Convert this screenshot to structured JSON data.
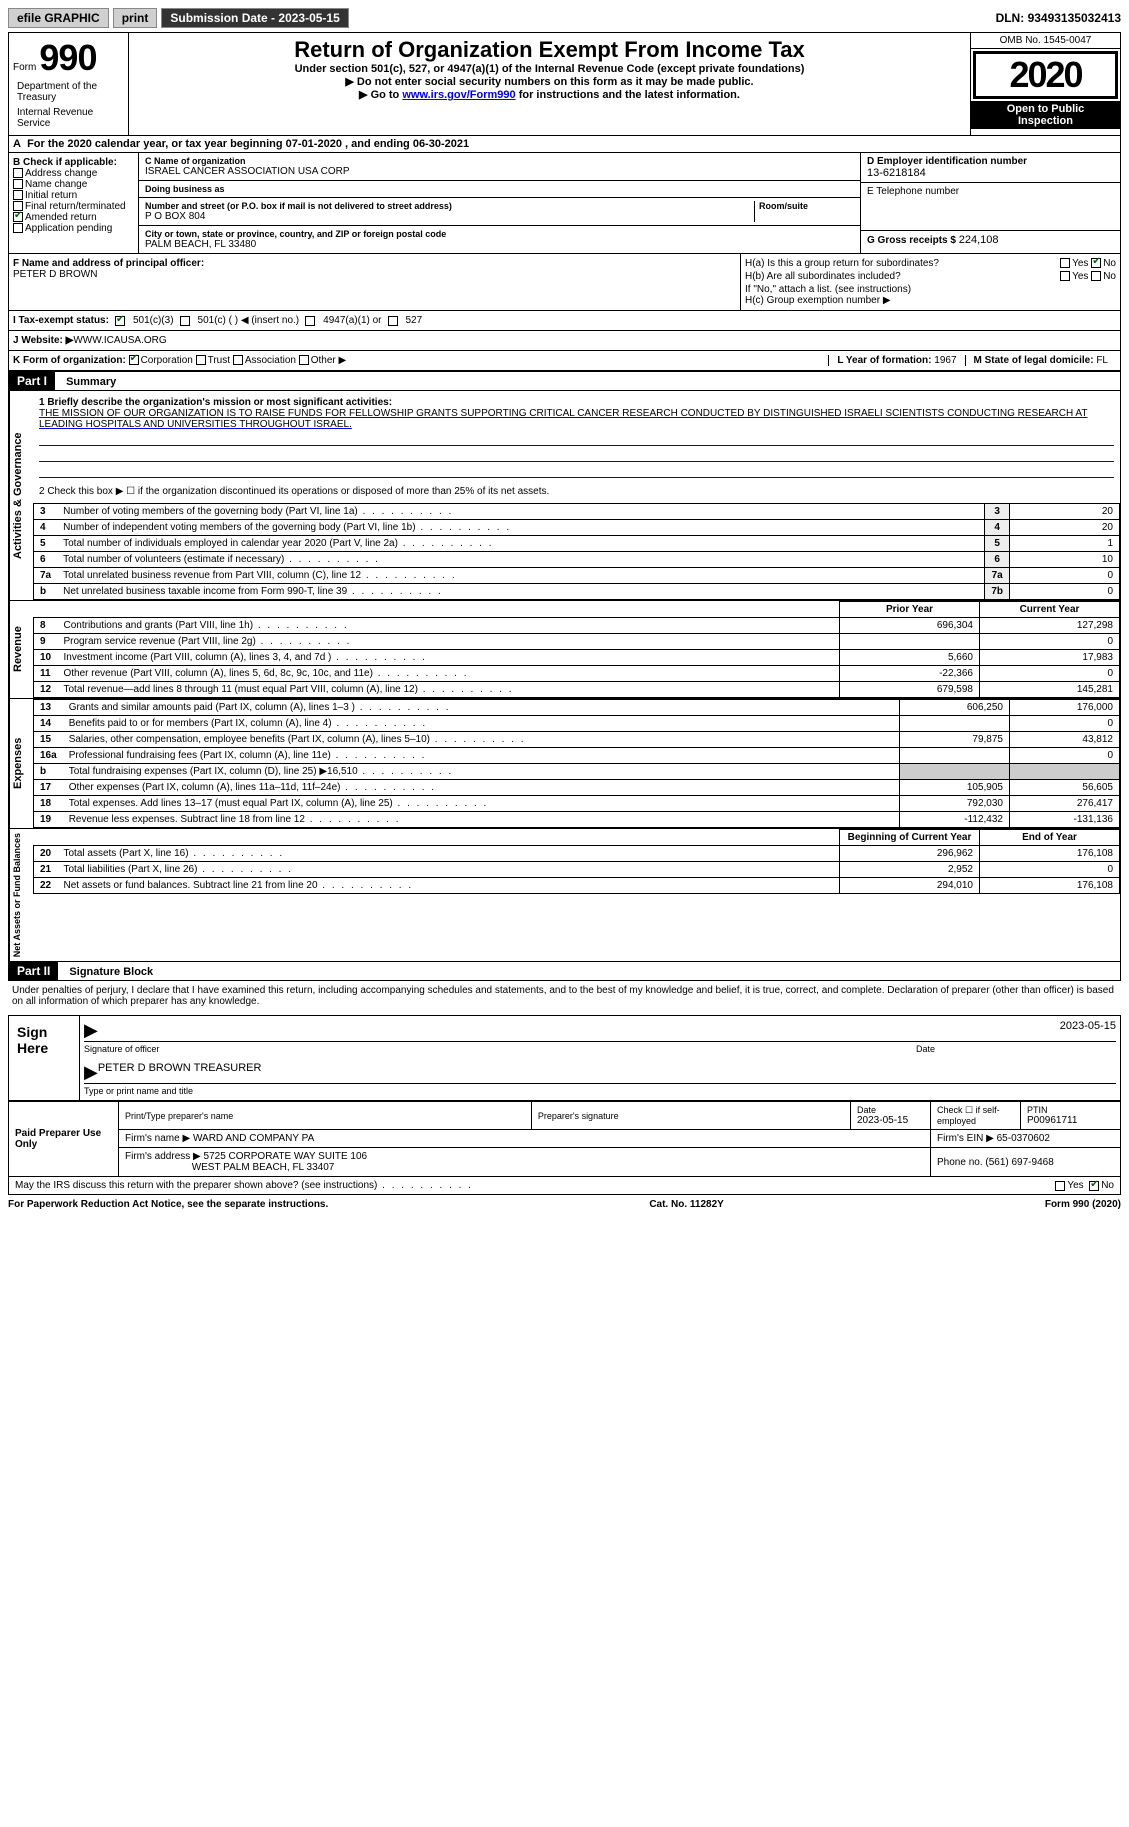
{
  "topbar": {
    "efile": "efile GRAPHIC",
    "print": "print",
    "subdate_label": "Submission Date - ",
    "subdate": "2023-05-15",
    "dln_label": "DLN: ",
    "dln": "93493135032413"
  },
  "header": {
    "form_label": "Form",
    "form_num": "990",
    "title": "Return of Organization Exempt From Income Tax",
    "sub1": "Under section 501(c), 527, or 4947(a)(1) of the Internal Revenue Code (except private foundations)",
    "sub2": "▶ Do not enter social security numbers on this form as it may be made public.",
    "sub3_pre": "▶ Go to ",
    "sub3_link": "www.irs.gov/Form990",
    "sub3_post": " for instructions and the latest information.",
    "omb": "OMB No. 1545-0047",
    "year": "2020",
    "inspect1": "Open to Public",
    "inspect2": "Inspection",
    "dept1": "Department of the Treasury",
    "dept2": "Internal Revenue Service"
  },
  "period": "For the 2020 calendar year, or tax year beginning 07-01-2020   , and ending 06-30-2021",
  "boxB": {
    "title": "B Check if applicable:",
    "addr": "Address change",
    "name": "Name change",
    "init": "Initial return",
    "final": "Final return/terminated",
    "amend": "Amended return",
    "app": "Application pending"
  },
  "boxC": {
    "name_lbl": "C Name of organization",
    "name": "ISRAEL CANCER ASSOCIATION USA CORP",
    "dba_lbl": "Doing business as",
    "dba": "",
    "street_lbl": "Number and street (or P.O. box if mail is not delivered to street address)",
    "street": "P O BOX 804",
    "room_lbl": "Room/suite",
    "room": "",
    "city_lbl": "City or town, state or province, country, and ZIP or foreign postal code",
    "city": "PALM BEACH, FL  33480"
  },
  "boxD": {
    "ein_lbl": "D Employer identification number",
    "ein": "13-6218184",
    "tel_lbl": "E Telephone number",
    "tel": "",
    "gross_lbl": "G Gross receipts $ ",
    "gross": "224,108"
  },
  "boxF": {
    "lbl": "F  Name and address of principal officer:",
    "name": "PETER D BROWN"
  },
  "boxH": {
    "a_lbl": "H(a)  Is this a group return for subordinates?",
    "b_lbl": "H(b)  Are all subordinates included?",
    "b_note": "If \"No,\" attach a list. (see instructions)",
    "c_lbl": "H(c)  Group exemption number ▶",
    "yes": "Yes",
    "no": "No"
  },
  "rowI": {
    "lbl": "I   Tax-exempt status:",
    "o1": "501(c)(3)",
    "o2": "501(c) (  ) ◀ (insert no.)",
    "o3": "4947(a)(1) or",
    "o4": "527"
  },
  "rowJ": {
    "lbl": "J   Website: ▶ ",
    "val": "WWW.ICAUSA.ORG"
  },
  "rowK": {
    "lbl": "K Form of organization:",
    "corp": "Corporation",
    "trust": "Trust",
    "assoc": "Association",
    "other": "Other ▶",
    "year_lbl": "L Year of formation: ",
    "year": "1967",
    "state_lbl": "M State of legal domicile: ",
    "state": "FL"
  },
  "part1": {
    "label": "Part I",
    "title": "Summary",
    "q1": "1  Briefly describe the organization's mission or most significant activities:",
    "mission": "THE MISSION OF OUR ORGANIZATION IS TO RAISE FUNDS FOR FELLOWSHIP GRANTS SUPPORTING CRITICAL CANCER RESEARCH CONDUCTED BY DISTINGUISHED ISRAELI SCIENTISTS CONDUCTING RESEARCH AT LEADING HOSPITALS AND UNIVERSITIES THROUGHOUT ISRAEL.",
    "q2": "2   Check this box ▶ ☐  if the organization discontinued its operations or disposed of more than 25% of its net assets.",
    "vtab_ag": "Activities & Governance",
    "vtab_rev": "Revenue",
    "vtab_exp": "Expenses",
    "vtab_na": "Net Assets or Fund Balances"
  },
  "lines_ag": [
    {
      "n": "3",
      "t": "Number of voting members of the governing body (Part VI, line 1a)",
      "box": "3",
      "v": "20"
    },
    {
      "n": "4",
      "t": "Number of independent voting members of the governing body (Part VI, line 1b)",
      "box": "4",
      "v": "20"
    },
    {
      "n": "5",
      "t": "Total number of individuals employed in calendar year 2020 (Part V, line 2a)",
      "box": "5",
      "v": "1"
    },
    {
      "n": "6",
      "t": "Total number of volunteers (estimate if necessary)",
      "box": "6",
      "v": "10"
    },
    {
      "n": "7a",
      "t": "Total unrelated business revenue from Part VIII, column (C), line 12",
      "box": "7a",
      "v": "0"
    },
    {
      "n": "b",
      "t": "Net unrelated business taxable income from Form 990-T, line 39",
      "box": "7b",
      "v": "0"
    }
  ],
  "col_hdr": {
    "py": "Prior Year",
    "cy": "Current Year"
  },
  "lines_rev": [
    {
      "n": "8",
      "t": "Contributions and grants (Part VIII, line 1h)",
      "py": "696,304",
      "cy": "127,298"
    },
    {
      "n": "9",
      "t": "Program service revenue (Part VIII, line 2g)",
      "py": "",
      "cy": "0"
    },
    {
      "n": "10",
      "t": "Investment income (Part VIII, column (A), lines 3, 4, and 7d )",
      "py": "5,660",
      "cy": "17,983"
    },
    {
      "n": "11",
      "t": "Other revenue (Part VIII, column (A), lines 5, 6d, 8c, 9c, 10c, and 11e)",
      "py": "-22,366",
      "cy": "0"
    },
    {
      "n": "12",
      "t": "Total revenue—add lines 8 through 11 (must equal Part VIII, column (A), line 12)",
      "py": "679,598",
      "cy": "145,281"
    }
  ],
  "lines_exp": [
    {
      "n": "13",
      "t": "Grants and similar amounts paid (Part IX, column (A), lines 1–3 )",
      "py": "606,250",
      "cy": "176,000"
    },
    {
      "n": "14",
      "t": "Benefits paid to or for members (Part IX, column (A), line 4)",
      "py": "",
      "cy": "0"
    },
    {
      "n": "15",
      "t": "Salaries, other compensation, employee benefits (Part IX, column (A), lines 5–10)",
      "py": "79,875",
      "cy": "43,812"
    },
    {
      "n": "16a",
      "t": "Professional fundraising fees (Part IX, column (A), line 11e)",
      "py": "",
      "cy": "0"
    },
    {
      "n": "b",
      "t": "Total fundraising expenses (Part IX, column (D), line 25) ▶16,510",
      "py": "GRAY",
      "cy": "GRAY"
    },
    {
      "n": "17",
      "t": "Other expenses (Part IX, column (A), lines 11a–11d, 11f–24e)",
      "py": "105,905",
      "cy": "56,605"
    },
    {
      "n": "18",
      "t": "Total expenses. Add lines 13–17 (must equal Part IX, column (A), line 25)",
      "py": "792,030",
      "cy": "276,417"
    },
    {
      "n": "19",
      "t": "Revenue less expenses. Subtract line 18 from line 12",
      "py": "-112,432",
      "cy": "-131,136"
    }
  ],
  "col_hdr2": {
    "py": "Beginning of Current Year",
    "cy": "End of Year"
  },
  "lines_na": [
    {
      "n": "20",
      "t": "Total assets (Part X, line 16)",
      "py": "296,962",
      "cy": "176,108"
    },
    {
      "n": "21",
      "t": "Total liabilities (Part X, line 26)",
      "py": "2,952",
      "cy": "0"
    },
    {
      "n": "22",
      "t": "Net assets or fund balances. Subtract line 21 from line 20",
      "py": "294,010",
      "cy": "176,108"
    }
  ],
  "part2": {
    "label": "Part II",
    "title": "Signature Block",
    "decl": "Under penalties of perjury, I declare that I have examined this return, including accompanying schedules and statements, and to the best of my knowledge and belief, it is true, correct, and complete. Declaration of preparer (other than officer) is based on all information of which preparer has any knowledge."
  },
  "sign": {
    "here": "Sign Here",
    "sig_lbl": "Signature of officer",
    "date_lbl": "Date",
    "date": "2023-05-15",
    "name": "PETER D BROWN  TREASURER",
    "name_lbl": "Type or print name and title"
  },
  "prep": {
    "title": "Paid Preparer Use Only",
    "ptname_lbl": "Print/Type preparer's name",
    "ptname": "",
    "sig_lbl": "Preparer's signature",
    "date_lbl": "Date",
    "date": "2023-05-15",
    "check_lbl": "Check ☐ if self-employed",
    "ptin_lbl": "PTIN",
    "ptin": "P00961711",
    "firm_lbl": "Firm's name    ▶ ",
    "firm": "WARD AND COMPANY PA",
    "ein_lbl": "Firm's EIN ▶ ",
    "ein": "65-0370602",
    "addr_lbl": "Firm's address ▶",
    "addr1": "5725 CORPORATE WAY SUITE 106",
    "addr2": "WEST PALM BEACH, FL  33407",
    "phone_lbl": "Phone no. ",
    "phone": "(561) 697-9468"
  },
  "may": {
    "q": "May the IRS discuss this return with the preparer shown above? (see instructions)",
    "yes": "Yes",
    "no": "No"
  },
  "footer": {
    "l": "For Paperwork Reduction Act Notice, see the separate instructions.",
    "m": "Cat. No. 11282Y",
    "r": "Form 990 (2020)"
  }
}
